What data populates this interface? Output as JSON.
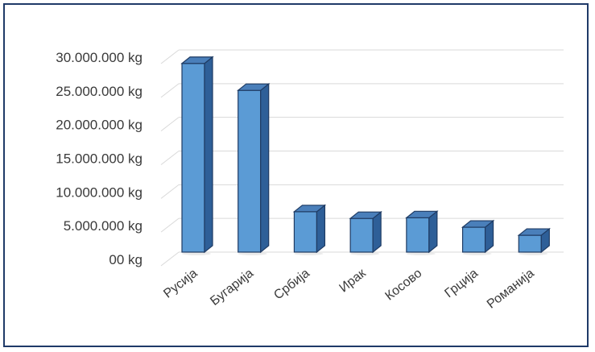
{
  "chart_data": {
    "type": "bar",
    "title": "",
    "xlabel": "",
    "ylabel": "",
    "categories": [
      "Русија",
      "Бугарија",
      "Србија",
      "Ирак",
      "Косово",
      "Грција",
      "Романија"
    ],
    "values": [
      28000000,
      24000000,
      6000000,
      5000000,
      5100000,
      3700000,
      2500000
    ],
    "ylim": [
      0,
      30000000
    ],
    "y_ticks": [
      0,
      5000000,
      10000000,
      15000000,
      20000000,
      25000000,
      30000000
    ],
    "y_tick_labels": [
      "00 kg",
      "5.000.000 kg",
      "10.000.000 kg",
      "15.000.000 kg",
      "20.000.000 kg",
      "25.000.000 kg",
      "30.000.000 kg"
    ],
    "grid": true,
    "legend": "none",
    "style": "3d-column",
    "colors": {
      "bar_front": "#5b9bd5",
      "bar_side": "#2e5f98",
      "bar_top": "#4a7fba",
      "bar_edge": "#1f3b63",
      "grid": "#d9d9d9",
      "text": "#3a3a3a",
      "frame": "#1f3a68"
    }
  }
}
